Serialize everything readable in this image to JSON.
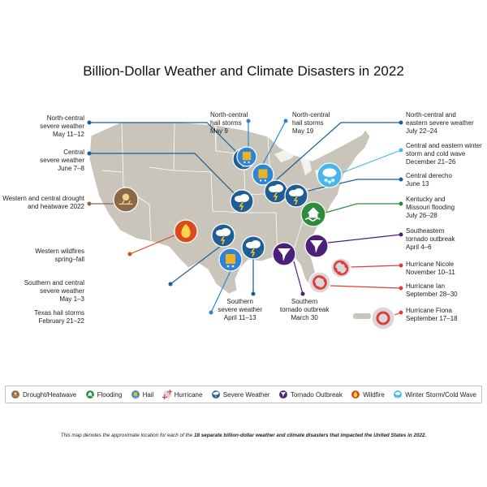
{
  "title": "Billion-Dollar Weather and Climate Disasters in 2022",
  "colors": {
    "map_land": "#c9c5bb",
    "drought": "#8a6a46",
    "flooding": "#2e8b3c",
    "hail": "#2f84d6",
    "hail_symbol": "#e8b324",
    "hurricane": "#e23b3b",
    "severe": "#1e5e94",
    "tornado": "#4b1f7a",
    "wildfire": "#d94a1c",
    "winter": "#47b6e8"
  },
  "events": [
    {
      "label_1": "North-central",
      "label_2": "severe weather",
      "label_3": "May 11–12",
      "category": "severe"
    },
    {
      "label_1": "Central",
      "label_2": "severe weather",
      "label_3": "June 7–8",
      "category": "severe"
    },
    {
      "label_1": "Western and central drought",
      "label_2": "and heatwave 2022",
      "category": "drought"
    },
    {
      "label_1": "Western wildfires",
      "label_2": "spring–fall",
      "category": "wildfire"
    },
    {
      "label_1": "Southern and central",
      "label_2": "severe weather",
      "label_3": "May 1–3",
      "category": "severe"
    },
    {
      "label_1": "Texas hail storms",
      "label_2": "February 21–22",
      "category": "hail"
    },
    {
      "label_1": "Southern",
      "label_2": "severe weather",
      "label_3": "April 11–13",
      "category": "severe"
    },
    {
      "label_1": "Southern",
      "label_2": "tornado outbreak",
      "label_3": "March 30",
      "category": "tornado"
    },
    {
      "label_1": "North-central",
      "label_2": "hail storms",
      "label_3": "May 9",
      "category": "hail"
    },
    {
      "label_1": "North-central",
      "label_2": "hail storms",
      "label_3": "May 19",
      "category": "hail"
    },
    {
      "label_1": "North-central and",
      "label_2": "eastern severe weather",
      "label_3": "July 22–24",
      "category": "severe"
    },
    {
      "label_1": "Central and eastern winter",
      "label_2": "storm and cold wave",
      "label_3": "December 21–26",
      "category": "winter"
    },
    {
      "label_1": "Central derecho",
      "label_2": "June 13",
      "category": "severe"
    },
    {
      "label_1": "Kentucky and",
      "label_2": "Missouri flooding",
      "label_3": "July 26–28",
      "category": "flooding"
    },
    {
      "label_1": "Southeastern",
      "label_2": "tornado outbreak",
      "label_3": "April 4–6",
      "category": "tornado"
    },
    {
      "label_1": "Hurricane Nicole",
      "label_2": "November 10–11",
      "category": "hurricane"
    },
    {
      "label_1": "Hurricane Ian",
      "label_2": "September 28–30",
      "category": "hurricane"
    },
    {
      "label_1": "Hurricane Fiona",
      "label_2": "September 17–18",
      "category": "hurricane"
    }
  ],
  "legend": [
    {
      "label": "Drought/Heatwave",
      "category": "drought"
    },
    {
      "label": "Flooding",
      "category": "flooding"
    },
    {
      "label": "Hail",
      "category": "hail"
    },
    {
      "label": "Hurricane",
      "category": "hurricane"
    },
    {
      "label": "Severe Weather",
      "category": "severe"
    },
    {
      "label": "Tornado Outbreak",
      "category": "tornado"
    },
    {
      "label": "Wildfire",
      "category": "wildfire"
    },
    {
      "label": "Winter Storm/Cold Wave",
      "category": "winter"
    }
  ],
  "footnote": {
    "part1": "This map denotes the approximate location for each of the ",
    "bold": "18 separate billion-dollar weather and climate disasters that impacted the United States in 2022.",
    "part2": ""
  }
}
